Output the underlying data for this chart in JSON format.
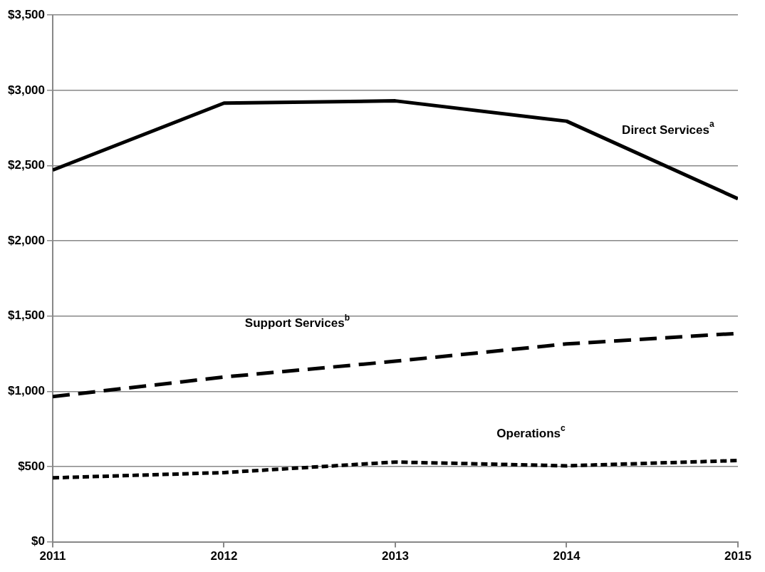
{
  "chart_data": {
    "type": "line",
    "x": [
      2011,
      2012,
      2013,
      2014,
      2015
    ],
    "xlim": [
      2011,
      2015
    ],
    "xticks": [
      2011,
      2012,
      2013,
      2014,
      2015
    ],
    "ylim": [
      0,
      3500
    ],
    "yticks": [
      {
        "value": 0,
        "label": "$0"
      },
      {
        "value": 500,
        "label": "$500"
      },
      {
        "value": 1000,
        "label": "$1,000"
      },
      {
        "value": 1500,
        "label": "$1,500"
      },
      {
        "value": 2000,
        "label": "$2,000"
      },
      {
        "value": 2500,
        "label": "$2,500"
      },
      {
        "value": 3000,
        "label": "$3,000"
      },
      {
        "value": 3500,
        "label": "$3,500"
      }
    ],
    "grid": "y",
    "legend": false,
    "marker": "none",
    "series": [
      {
        "name": "Direct Services$^{a}$",
        "color": "#000000",
        "line_style": "solid",
        "values": [
          2470,
          2915,
          2930,
          2795,
          2280
        ]
      },
      {
        "name": "Support Services$^{b}$",
        "color": "#000000",
        "line_style": "dashed",
        "values": [
          965,
          1095,
          1200,
          1315,
          1385
        ]
      },
      {
        "name": "Operations$^{c}$",
        "color": "#000000",
        "line_style": "dotted",
        "values": [
          425,
          460,
          530,
          505,
          540
        ]
      }
    ]
  }
}
